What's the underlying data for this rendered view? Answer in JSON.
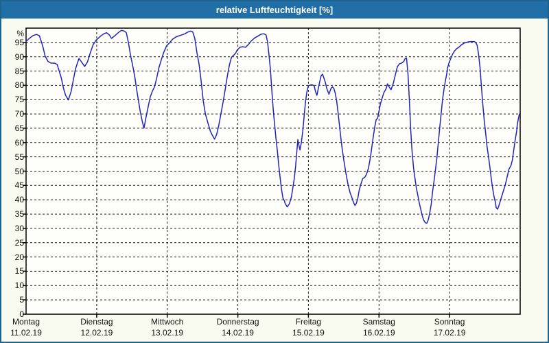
{
  "window": {
    "title": "relative Luftfeuchtigkeit [%]"
  },
  "colors": {
    "titlebar": "#226ea6",
    "titlebar_text": "#ffffff",
    "window_border": "#1f648e",
    "background": "#fafbf0",
    "plot_background": "#fefefb",
    "grid": "#1a1a1a",
    "line": "#2323b8",
    "axis_text": "#111111"
  },
  "chart_data": {
    "type": "line",
    "title": "relative Luftfeuchtigkeit [%]",
    "xlabel": "",
    "ylabel": "%",
    "ylim": [
      0,
      100
    ],
    "yticks": [
      0,
      5,
      10,
      15,
      20,
      25,
      30,
      35,
      40,
      45,
      50,
      55,
      60,
      65,
      70,
      75,
      80,
      85,
      90,
      95
    ],
    "grid": "dashed horizontal every 5 %, dashed vertical at each day boundary",
    "legend": "none",
    "x_days": [
      {
        "name": "Montag",
        "date": "11.02.19"
      },
      {
        "name": "Dienstag",
        "date": "12.02.19"
      },
      {
        "name": "Mittwoch",
        "date": "13.02.19"
      },
      {
        "name": "Donnerstag",
        "date": "14.02.19"
      },
      {
        "name": "Freitag",
        "date": "15.02.19"
      },
      {
        "name": "Samstag",
        "date": "16.02.19"
      },
      {
        "name": "Sonntag",
        "date": "17.02.19"
      }
    ],
    "series": [
      {
        "name": "relative Luftfeuchtigkeit",
        "color": "#2323b8",
        "x_unit": "days since 11.02.19 00:00 (0-7)",
        "y_unit": "%",
        "points": [
          [
            0.0,
            95.3
          ],
          [
            0.04,
            96.3
          ],
          [
            0.1,
            97.4
          ],
          [
            0.15,
            97.8
          ],
          [
            0.19,
            97.3
          ],
          [
            0.22,
            95.0
          ],
          [
            0.24,
            93.3
          ],
          [
            0.27,
            90.2
          ],
          [
            0.31,
            88.4
          ],
          [
            0.35,
            87.8
          ],
          [
            0.41,
            87.7
          ],
          [
            0.44,
            87.3
          ],
          [
            0.47,
            85.0
          ],
          [
            0.5,
            82.5
          ],
          [
            0.53,
            79.0
          ],
          [
            0.56,
            76.5
          ],
          [
            0.6,
            74.9
          ],
          [
            0.64,
            78.0
          ],
          [
            0.67,
            82.0
          ],
          [
            0.7,
            85.7
          ],
          [
            0.73,
            88.0
          ],
          [
            0.75,
            89.4
          ],
          [
            0.78,
            88.4
          ],
          [
            0.83,
            86.6
          ],
          [
            0.87,
            88.2
          ],
          [
            0.91,
            91.4
          ],
          [
            0.95,
            94.2
          ],
          [
            0.99,
            95.7
          ],
          [
            1.02,
            96.4
          ],
          [
            1.06,
            97.3
          ],
          [
            1.1,
            98.0
          ],
          [
            1.14,
            98.4
          ],
          [
            1.18,
            97.6
          ],
          [
            1.21,
            96.4
          ],
          [
            1.26,
            97.4
          ],
          [
            1.31,
            98.5
          ],
          [
            1.35,
            99.2
          ],
          [
            1.39,
            99.0
          ],
          [
            1.42,
            98.4
          ],
          [
            1.45,
            95.0
          ],
          [
            1.48,
            90.5
          ],
          [
            1.51,
            87.0
          ],
          [
            1.54,
            83.0
          ],
          [
            1.56,
            79.5
          ],
          [
            1.59,
            75.0
          ],
          [
            1.62,
            70.5
          ],
          [
            1.65,
            67.0
          ],
          [
            1.67,
            65.0
          ],
          [
            1.7,
            69.0
          ],
          [
            1.73,
            72.5
          ],
          [
            1.76,
            76.0
          ],
          [
            1.79,
            78.0
          ],
          [
            1.82,
            79.5
          ],
          [
            1.85,
            82.5
          ],
          [
            1.88,
            86.0
          ],
          [
            1.92,
            89.3
          ],
          [
            1.95,
            91.5
          ],
          [
            1.99,
            93.8
          ],
          [
            2.03,
            94.8
          ],
          [
            2.08,
            96.2
          ],
          [
            2.13,
            97.0
          ],
          [
            2.19,
            97.5
          ],
          [
            2.25,
            98.0
          ],
          [
            2.29,
            98.6
          ],
          [
            2.33,
            99.0
          ],
          [
            2.36,
            98.7
          ],
          [
            2.39,
            96.5
          ],
          [
            2.42,
            91.5
          ],
          [
            2.45,
            87.5
          ],
          [
            2.48,
            81.5
          ],
          [
            2.51,
            74.5
          ],
          [
            2.54,
            70.0
          ],
          [
            2.58,
            66.5
          ],
          [
            2.61,
            64.0
          ],
          [
            2.64,
            62.5
          ],
          [
            2.67,
            61.2
          ],
          [
            2.7,
            62.8
          ],
          [
            2.73,
            66.0
          ],
          [
            2.76,
            70.0
          ],
          [
            2.79,
            74.0
          ],
          [
            2.82,
            78.5
          ],
          [
            2.85,
            83.0
          ],
          [
            2.88,
            87.0
          ],
          [
            2.91,
            89.8
          ],
          [
            2.94,
            90.5
          ],
          [
            2.97,
            91.3
          ],
          [
            2.99,
            92.3
          ],
          [
            3.03,
            93.3
          ],
          [
            3.07,
            93.5
          ],
          [
            3.11,
            93.3
          ],
          [
            3.15,
            94.3
          ],
          [
            3.19,
            95.5
          ],
          [
            3.24,
            96.6
          ],
          [
            3.29,
            97.3
          ],
          [
            3.33,
            97.9
          ],
          [
            3.37,
            98.0
          ],
          [
            3.4,
            97.6
          ],
          [
            3.42,
            95.3
          ],
          [
            3.44,
            91.0
          ],
          [
            3.46,
            86.0
          ],
          [
            3.48,
            79.0
          ],
          [
            3.5,
            72.0
          ],
          [
            3.52,
            66.5
          ],
          [
            3.54,
            61.5
          ],
          [
            3.56,
            57.0
          ],
          [
            3.58,
            52.0
          ],
          [
            3.6,
            47.5
          ],
          [
            3.62,
            43.5
          ],
          [
            3.64,
            40.5
          ],
          [
            3.66,
            39.6
          ],
          [
            3.67,
            38.7
          ],
          [
            3.7,
            37.5
          ],
          [
            3.73,
            38.6
          ],
          [
            3.76,
            41.0
          ],
          [
            3.78,
            44.3
          ],
          [
            3.8,
            47.5
          ],
          [
            3.82,
            52.0
          ],
          [
            3.83,
            55.0
          ],
          [
            3.85,
            61.0
          ],
          [
            3.87,
            58.5
          ],
          [
            3.88,
            57.4
          ],
          [
            3.9,
            60.0
          ],
          [
            3.92,
            64.0
          ],
          [
            3.94,
            69.5
          ],
          [
            3.96,
            74.5
          ],
          [
            3.98,
            78.0
          ],
          [
            4.0,
            79.9
          ],
          [
            4.03,
            80.1
          ],
          [
            4.05,
            80.2
          ],
          [
            4.08,
            79.9
          ],
          [
            4.1,
            77.9
          ],
          [
            4.12,
            76.5
          ],
          [
            4.14,
            78.9
          ],
          [
            4.16,
            81.3
          ],
          [
            4.18,
            83.3
          ],
          [
            4.2,
            83.9
          ],
          [
            4.22,
            82.5
          ],
          [
            4.24,
            81.0
          ],
          [
            4.26,
            78.9
          ],
          [
            4.29,
            76.9
          ],
          [
            4.32,
            78.9
          ],
          [
            4.34,
            79.5
          ],
          [
            4.36,
            78.9
          ],
          [
            4.38,
            77.3
          ],
          [
            4.4,
            74.5
          ],
          [
            4.42,
            70.5
          ],
          [
            4.44,
            66.0
          ],
          [
            4.46,
            61.5
          ],
          [
            4.48,
            57.5
          ],
          [
            4.5,
            54.0
          ],
          [
            4.53,
            49.5
          ],
          [
            4.56,
            45.5
          ],
          [
            4.59,
            42.5
          ],
          [
            4.62,
            40.5
          ],
          [
            4.64,
            39.0
          ],
          [
            4.66,
            38.0
          ],
          [
            4.68,
            38.8
          ],
          [
            4.7,
            40.5
          ],
          [
            4.72,
            43.5
          ],
          [
            4.75,
            46.0
          ],
          [
            4.77,
            47.4
          ],
          [
            4.8,
            47.9
          ],
          [
            4.82,
            48.8
          ],
          [
            4.85,
            51.0
          ],
          [
            4.88,
            55.0
          ],
          [
            4.91,
            60.5
          ],
          [
            4.94,
            65.5
          ],
          [
            4.96,
            68.0
          ],
          [
            4.98,
            68.5
          ],
          [
            5.0,
            71.0
          ],
          [
            5.02,
            73.5
          ],
          [
            5.05,
            76.0
          ],
          [
            5.07,
            77.5
          ],
          [
            5.1,
            78.8
          ],
          [
            5.12,
            80.5
          ],
          [
            5.15,
            79.2
          ],
          [
            5.17,
            78.5
          ],
          [
            5.2,
            80.5
          ],
          [
            5.23,
            83.5
          ],
          [
            5.26,
            86.5
          ],
          [
            5.29,
            87.5
          ],
          [
            5.32,
            87.8
          ],
          [
            5.35,
            88.3
          ],
          [
            5.37,
            89.3
          ],
          [
            5.39,
            89.5
          ],
          [
            5.41,
            84.0
          ],
          [
            5.43,
            75.0
          ],
          [
            5.45,
            64.0
          ],
          [
            5.47,
            56.5
          ],
          [
            5.49,
            51.0
          ],
          [
            5.51,
            47.4
          ],
          [
            5.53,
            44.0
          ],
          [
            5.55,
            41.5
          ],
          [
            5.57,
            39.0
          ],
          [
            5.59,
            36.8
          ],
          [
            5.61,
            34.7
          ],
          [
            5.63,
            33.0
          ],
          [
            5.65,
            32.2
          ],
          [
            5.67,
            31.8
          ],
          [
            5.68,
            31.9
          ],
          [
            5.7,
            33.2
          ],
          [
            5.72,
            35.5
          ],
          [
            5.74,
            38.5
          ],
          [
            5.76,
            43.1
          ],
          [
            5.78,
            46.6
          ],
          [
            5.8,
            50.6
          ],
          [
            5.82,
            54.6
          ],
          [
            5.84,
            60.0
          ],
          [
            5.86,
            65.0
          ],
          [
            5.88,
            70.0
          ],
          [
            5.9,
            75.0
          ],
          [
            5.92,
            78.5
          ],
          [
            5.94,
            81.5
          ],
          [
            5.96,
            84.0
          ],
          [
            5.97,
            86.0
          ],
          [
            5.99,
            87.7
          ],
          [
            6.01,
            89.0
          ],
          [
            6.04,
            90.8
          ],
          [
            6.07,
            92.0
          ],
          [
            6.1,
            92.8
          ],
          [
            6.13,
            93.3
          ],
          [
            6.17,
            94.2
          ],
          [
            6.21,
            94.8
          ],
          [
            6.25,
            95.1
          ],
          [
            6.3,
            95.3
          ],
          [
            6.35,
            95.3
          ],
          [
            6.37,
            95.0
          ],
          [
            6.39,
            94.0
          ],
          [
            6.41,
            91.0
          ],
          [
            6.43,
            86.5
          ],
          [
            6.45,
            80.0
          ],
          [
            6.47,
            73.5
          ],
          [
            6.49,
            68.0
          ],
          [
            6.51,
            63.5
          ],
          [
            6.53,
            58.6
          ],
          [
            6.55,
            55.4
          ],
          [
            6.57,
            51.5
          ],
          [
            6.59,
            47.5
          ],
          [
            6.61,
            44.0
          ],
          [
            6.63,
            41.1
          ],
          [
            6.65,
            39.0
          ],
          [
            6.66,
            37.3
          ],
          [
            6.68,
            36.7
          ],
          [
            6.7,
            38.0
          ],
          [
            6.73,
            40.5
          ],
          [
            6.76,
            42.9
          ],
          [
            6.79,
            45.3
          ],
          [
            6.82,
            48.5
          ],
          [
            6.84,
            50.6
          ],
          [
            6.87,
            52.0
          ],
          [
            6.89,
            54.0
          ],
          [
            6.91,
            57.5
          ],
          [
            6.93,
            61.0
          ],
          [
            6.95,
            64.0
          ],
          [
            6.96,
            66.5
          ],
          [
            6.98,
            69.0
          ],
          [
            6.99,
            70.0
          ]
        ]
      }
    ]
  }
}
